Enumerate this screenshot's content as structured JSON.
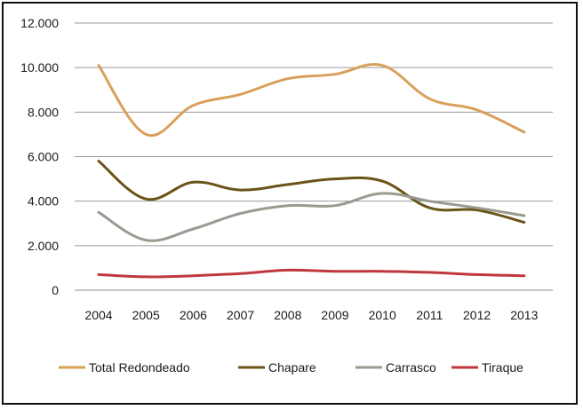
{
  "chart_data": {
    "type": "line",
    "title": "",
    "xlabel": "",
    "ylabel": "",
    "categories": [
      "2004",
      "2005",
      "2006",
      "2007",
      "2008",
      "2009",
      "2010",
      "2011",
      "2012",
      "2013"
    ],
    "ylim": [
      0,
      12000
    ],
    "yticks": [
      0,
      2000,
      4000,
      6000,
      8000,
      10000,
      12000
    ],
    "ytick_labels": [
      "0",
      "2.000",
      "4.000",
      "6.000",
      "8.000",
      "10.000",
      "12.000"
    ],
    "grid": true,
    "legend_position": "bottom",
    "series": [
      {
        "name": "Total Redondeado",
        "color": "#d9a05b",
        "values": [
          10100,
          7000,
          8300,
          8800,
          9500,
          9700,
          10100,
          8600,
          8100,
          7100
        ]
      },
      {
        "name": "Chapare",
        "color": "#6b5418",
        "values": [
          5800,
          4100,
          4850,
          4500,
          4750,
          5000,
          4900,
          3700,
          3600,
          3050
        ]
      },
      {
        "name": "Carrasco",
        "color": "#9a9a90",
        "values": [
          3500,
          2250,
          2750,
          3450,
          3800,
          3800,
          4350,
          4000,
          3700,
          3350
        ]
      },
      {
        "name": "Tiraque",
        "color": "#c0383e",
        "values": [
          700,
          600,
          650,
          750,
          900,
          850,
          850,
          800,
          700,
          650
        ]
      }
    ]
  }
}
